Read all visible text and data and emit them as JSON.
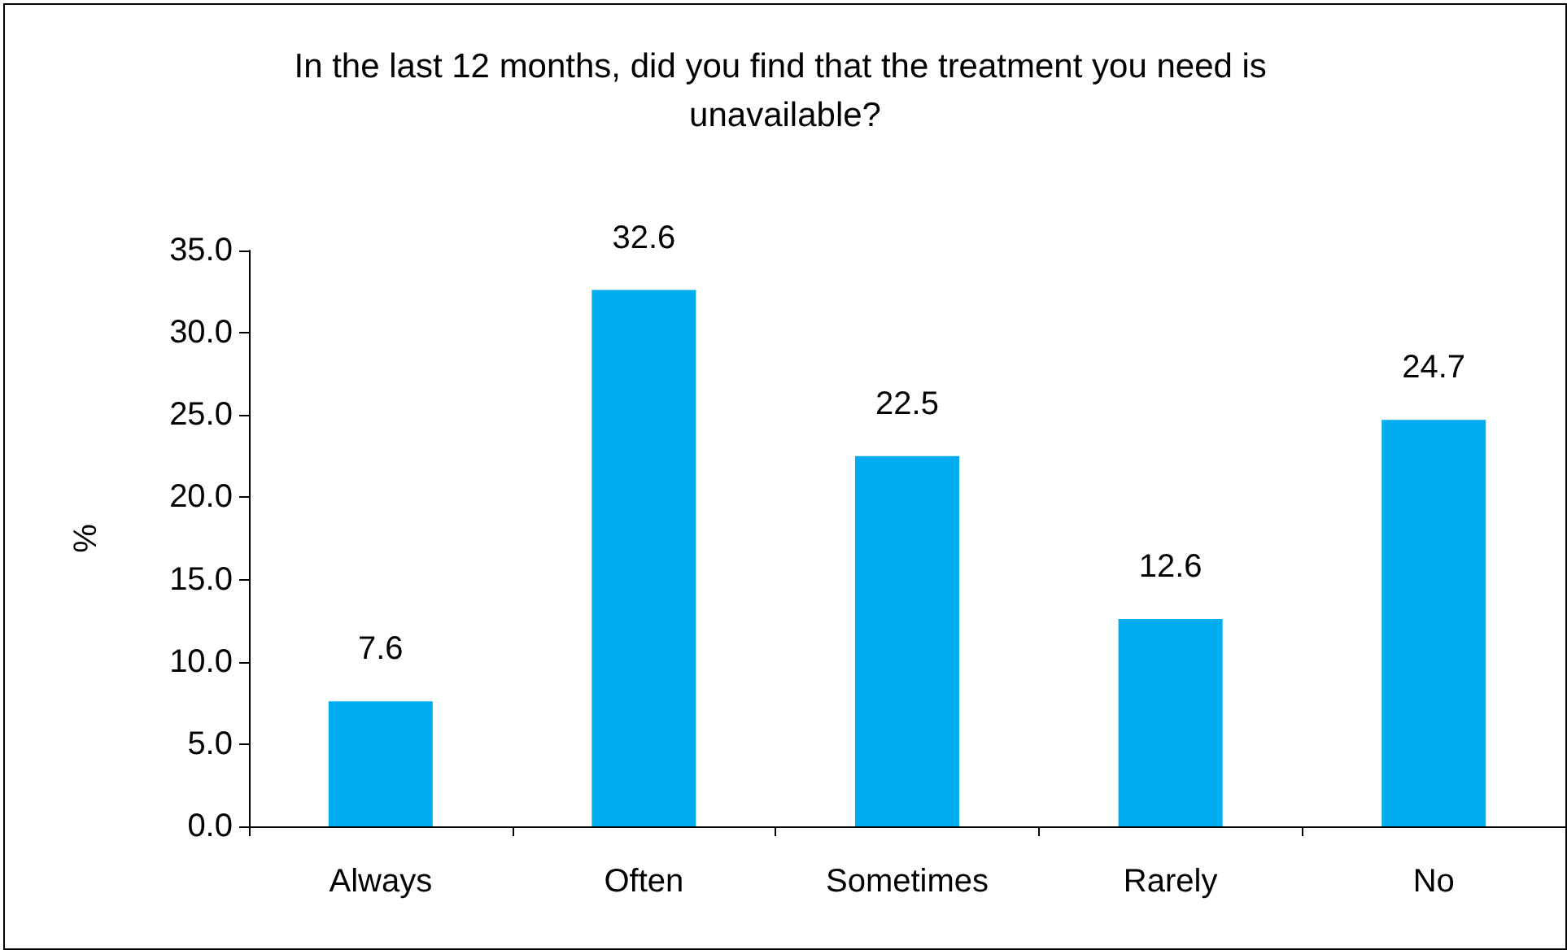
{
  "chart_data": {
    "type": "bar",
    "title": "In the last 12 months, did you find that the treatment you need is unavailable?",
    "categories": [
      "Always",
      "Often",
      "Sometimes",
      "Rarely",
      "No"
    ],
    "values": [
      7.6,
      32.6,
      22.5,
      12.6,
      24.7
    ],
    "color": "#00adef",
    "ylabel": "%",
    "ylim": [
      0,
      35
    ],
    "yticks": [
      {
        "value": 0,
        "label": "0.0"
      },
      {
        "value": 5,
        "label": "5.0"
      },
      {
        "value": 10,
        "label": "10.0"
      },
      {
        "value": 15,
        "label": "15.0"
      },
      {
        "value": 20,
        "label": "20.0"
      },
      {
        "value": 25,
        "label": "25.0"
      },
      {
        "value": 30,
        "label": "30.0"
      },
      {
        "value": 35,
        "label": "35.0"
      }
    ],
    "grid": false,
    "data_labels": true
  }
}
